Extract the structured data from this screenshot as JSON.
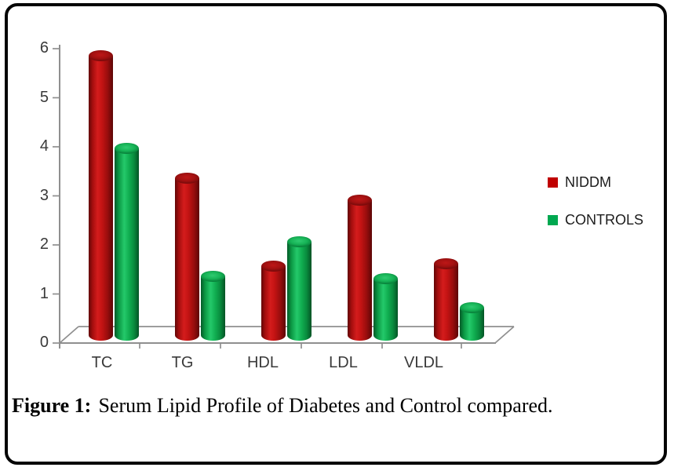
{
  "figure": {
    "caption_label": "Figure 1:",
    "caption_text": "Serum Lipid Profile of Diabetes and Control compared."
  },
  "chart_data": {
    "type": "bar",
    "style": "3d-cylinder",
    "title": "",
    "xlabel": "",
    "ylabel": "",
    "categories": [
      "TC",
      "TG",
      "HDL",
      "LDL",
      "VLDL"
    ],
    "series": [
      {
        "name": "NIDDM",
        "color": "#c00000",
        "values": [
          5.8,
          3.3,
          1.5,
          2.85,
          1.55
        ]
      },
      {
        "name": "CONTROLS",
        "color": "#00a850",
        "values": [
          3.9,
          1.3,
          2.0,
          1.25,
          0.65
        ]
      }
    ],
    "ylim": [
      0,
      6
    ],
    "yticks": [
      0,
      1,
      2,
      3,
      4,
      5,
      6
    ],
    "legend": [
      "NIDDM",
      "CONTROLS"
    ],
    "legend_position": "right",
    "grid": false,
    "axis_color": "#8f8f8f"
  }
}
